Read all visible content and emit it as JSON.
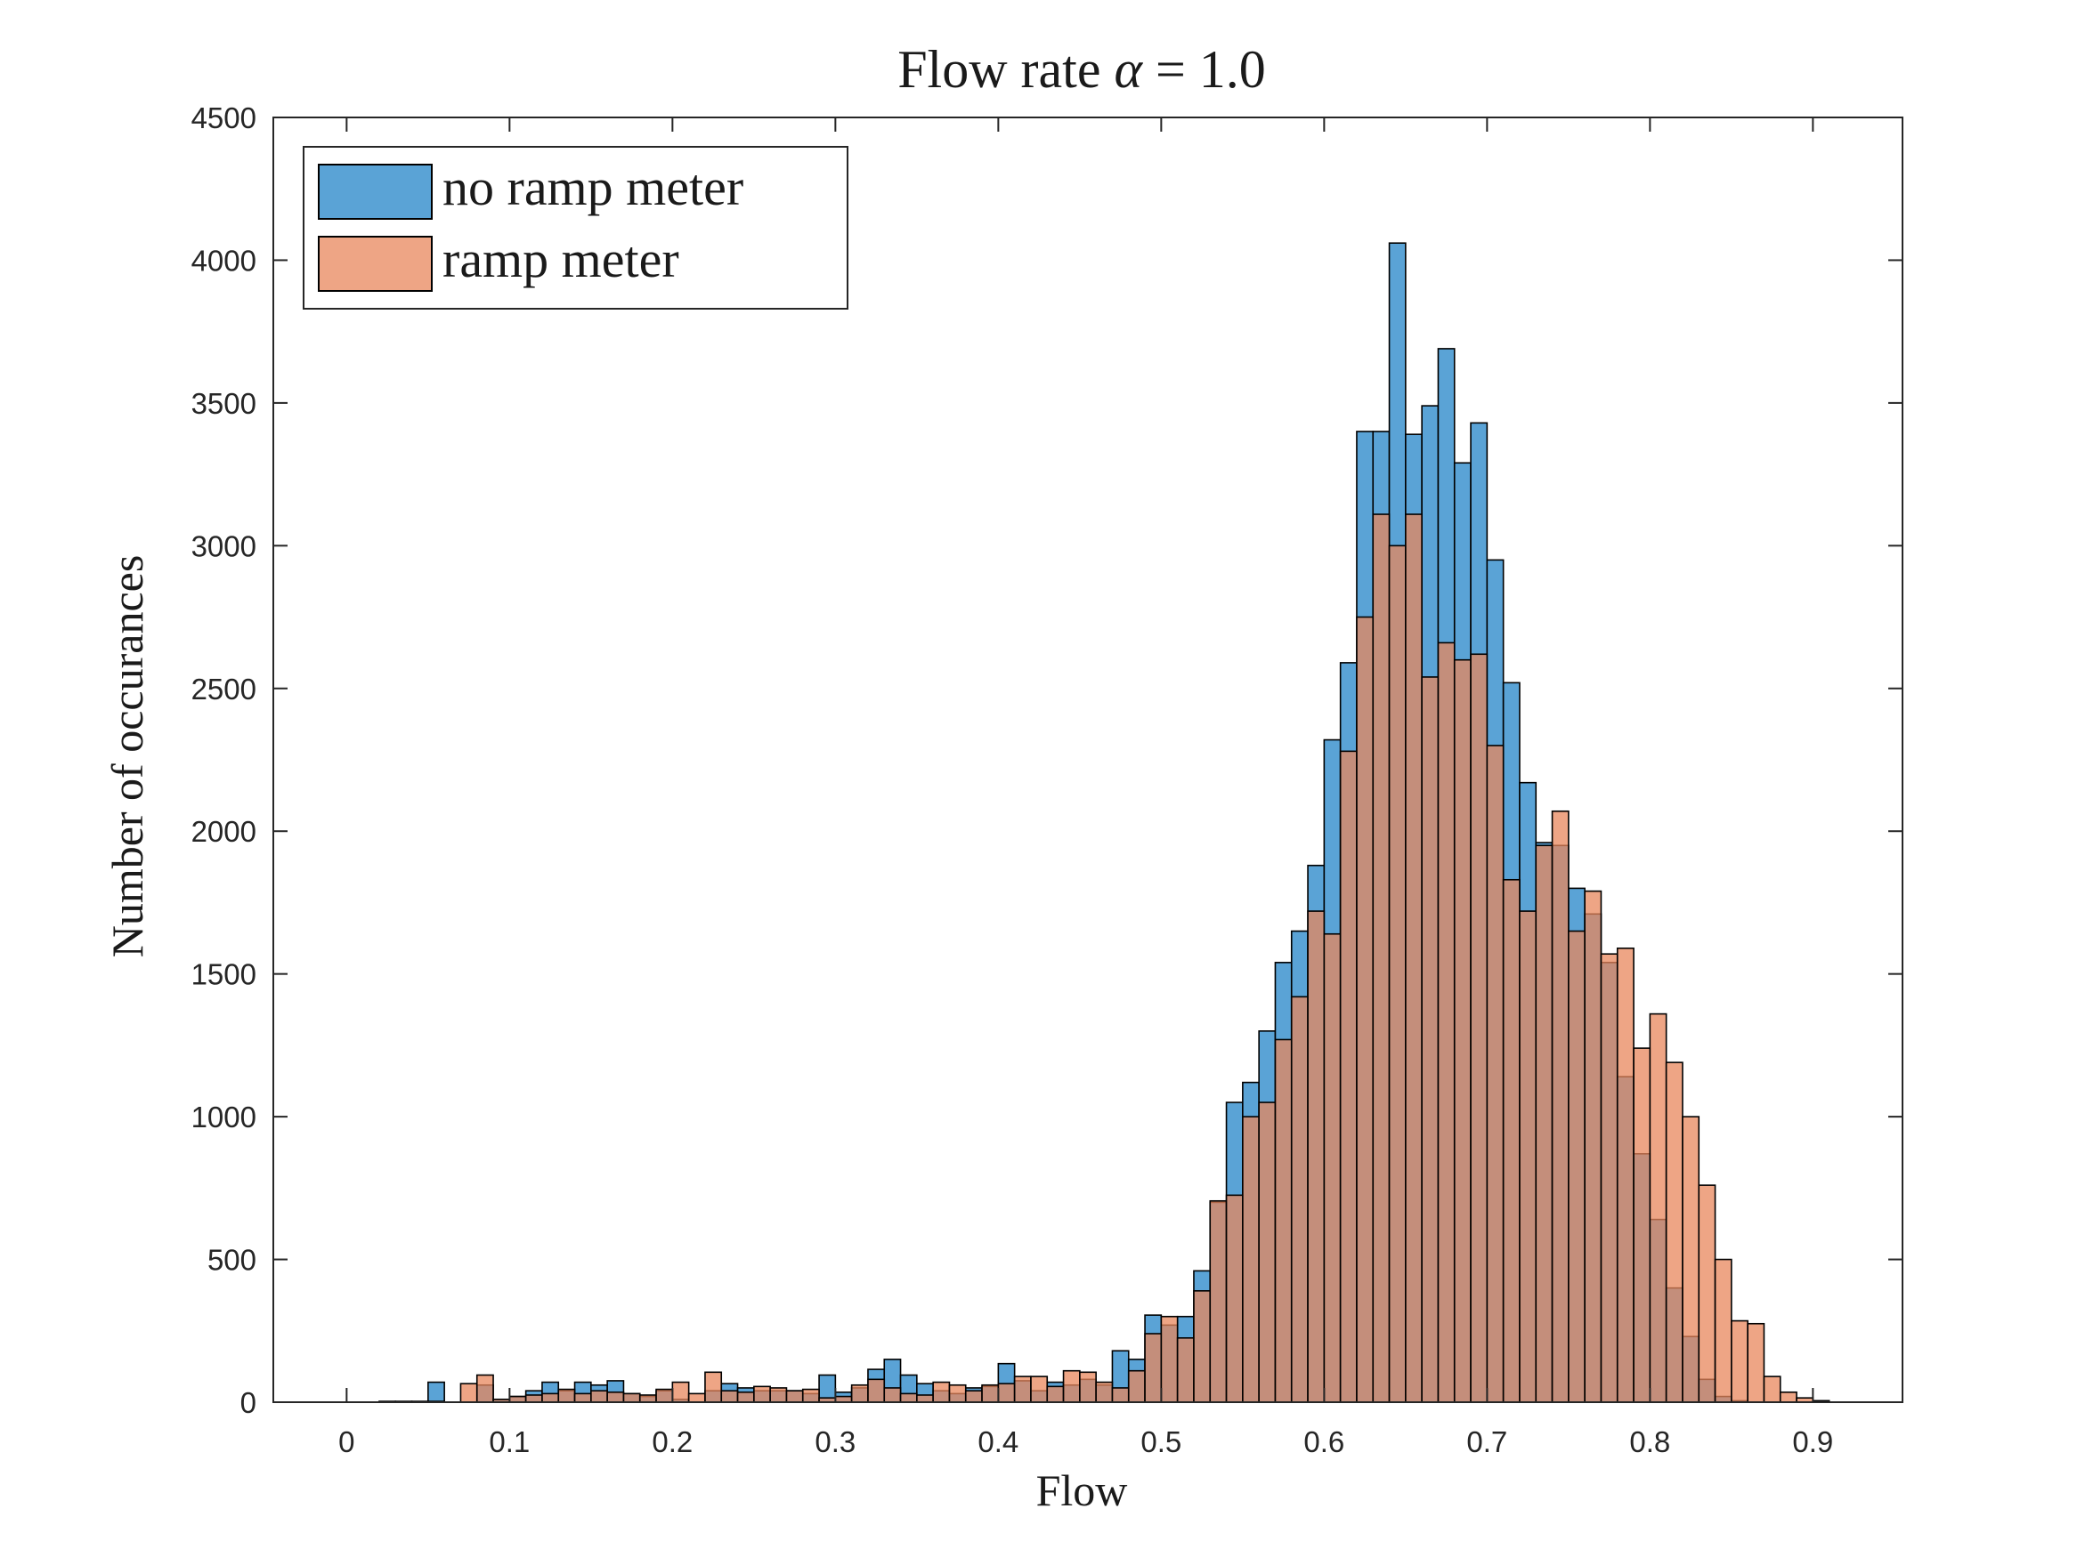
{
  "chart_data": {
    "type": "bar",
    "title": "Flow rate α = 1.0",
    "xlabel": "Flow",
    "ylabel": "Number of occurances",
    "xlim": [
      -0.045,
      0.955
    ],
    "ylim": [
      0,
      4500
    ],
    "bin_width": 0.01,
    "xticks": [
      0,
      0.1,
      0.2,
      0.3,
      0.4,
      0.5,
      0.6,
      0.7,
      0.8,
      0.9
    ],
    "xtick_labels": [
      "0",
      "0.1",
      "0.2",
      "0.3",
      "0.4",
      "0.5",
      "0.6",
      "0.7",
      "0.8",
      "0.9"
    ],
    "yticks": [
      0,
      500,
      1000,
      1500,
      2000,
      2500,
      3000,
      3500,
      4000,
      4500
    ],
    "ytick_labels": [
      "0",
      "500",
      "1000",
      "1500",
      "2000",
      "2500",
      "3000",
      "3500",
      "4000",
      "4500"
    ],
    "grid": false,
    "legend_position": "top-left",
    "series": [
      {
        "name": "no ramp meter",
        "color": "#5aa3d6",
        "bins": [
          [
            0.05,
            70
          ],
          [
            0.06,
            0
          ],
          [
            0.07,
            0
          ],
          [
            0.08,
            60
          ],
          [
            0.09,
            10
          ],
          [
            0.1,
            20
          ],
          [
            0.11,
            40
          ],
          [
            0.12,
            70
          ],
          [
            0.13,
            40
          ],
          [
            0.14,
            70
          ],
          [
            0.15,
            60
          ],
          [
            0.16,
            75
          ],
          [
            0.17,
            30
          ],
          [
            0.18,
            20
          ],
          [
            0.19,
            40
          ],
          [
            0.2,
            10
          ],
          [
            0.21,
            0
          ],
          [
            0.22,
            40
          ],
          [
            0.23,
            65
          ],
          [
            0.24,
            50
          ],
          [
            0.25,
            40
          ],
          [
            0.26,
            40
          ],
          [
            0.27,
            40
          ],
          [
            0.28,
            30
          ],
          [
            0.29,
            95
          ],
          [
            0.3,
            35
          ],
          [
            0.31,
            50
          ],
          [
            0.32,
            115
          ],
          [
            0.33,
            150
          ],
          [
            0.34,
            95
          ],
          [
            0.35,
            65
          ],
          [
            0.36,
            40
          ],
          [
            0.37,
            30
          ],
          [
            0.38,
            50
          ],
          [
            0.39,
            55
          ],
          [
            0.4,
            135
          ],
          [
            0.41,
            75
          ],
          [
            0.42,
            40
          ],
          [
            0.43,
            70
          ],
          [
            0.44,
            60
          ],
          [
            0.45,
            80
          ],
          [
            0.46,
            60
          ],
          [
            0.47,
            180
          ],
          [
            0.48,
            150
          ],
          [
            0.49,
            305
          ],
          [
            0.5,
            270
          ],
          [
            0.51,
            300
          ],
          [
            0.52,
            460
          ],
          [
            0.53,
            700
          ],
          [
            0.54,
            1050
          ],
          [
            0.55,
            1120
          ],
          [
            0.56,
            1300
          ],
          [
            0.57,
            1540
          ],
          [
            0.58,
            1650
          ],
          [
            0.59,
            1880
          ],
          [
            0.6,
            2320
          ],
          [
            0.61,
            2590
          ],
          [
            0.62,
            3400
          ],
          [
            0.63,
            3400
          ],
          [
            0.64,
            4060
          ],
          [
            0.65,
            3390
          ],
          [
            0.66,
            3490
          ],
          [
            0.67,
            3690
          ],
          [
            0.68,
            3290
          ],
          [
            0.69,
            3430
          ],
          [
            0.7,
            2950
          ],
          [
            0.71,
            2520
          ],
          [
            0.72,
            2170
          ],
          [
            0.73,
            1960
          ],
          [
            0.74,
            1950
          ],
          [
            0.75,
            1800
          ],
          [
            0.76,
            1710
          ],
          [
            0.77,
            1540
          ],
          [
            0.78,
            1140
          ],
          [
            0.79,
            870
          ],
          [
            0.8,
            640
          ],
          [
            0.81,
            400
          ],
          [
            0.82,
            230
          ],
          [
            0.83,
            80
          ],
          [
            0.84,
            20
          ],
          [
            0.85,
            5
          ],
          [
            0.86,
            0
          ],
          [
            0.87,
            0
          ],
          [
            0.88,
            0
          ],
          [
            0.89,
            0
          ],
          [
            0.9,
            5
          ]
        ]
      },
      {
        "name": "ramp meter",
        "color": "#e8875c",
        "bins": [
          [
            0.02,
            3
          ],
          [
            0.03,
            3
          ],
          [
            0.04,
            3
          ],
          [
            0.05,
            3
          ],
          [
            0.06,
            0
          ],
          [
            0.07,
            65
          ],
          [
            0.08,
            95
          ],
          [
            0.09,
            10
          ],
          [
            0.1,
            20
          ],
          [
            0.11,
            25
          ],
          [
            0.12,
            30
          ],
          [
            0.13,
            45
          ],
          [
            0.14,
            30
          ],
          [
            0.15,
            40
          ],
          [
            0.16,
            35
          ],
          [
            0.17,
            30
          ],
          [
            0.18,
            25
          ],
          [
            0.19,
            45
          ],
          [
            0.2,
            70
          ],
          [
            0.21,
            30
          ],
          [
            0.22,
            105
          ],
          [
            0.23,
            40
          ],
          [
            0.24,
            35
          ],
          [
            0.25,
            55
          ],
          [
            0.26,
            50
          ],
          [
            0.27,
            40
          ],
          [
            0.28,
            45
          ],
          [
            0.29,
            15
          ],
          [
            0.3,
            20
          ],
          [
            0.31,
            60
          ],
          [
            0.32,
            80
          ],
          [
            0.33,
            50
          ],
          [
            0.34,
            30
          ],
          [
            0.35,
            25
          ],
          [
            0.36,
            70
          ],
          [
            0.37,
            60
          ],
          [
            0.38,
            40
          ],
          [
            0.39,
            60
          ],
          [
            0.4,
            65
          ],
          [
            0.41,
            90
          ],
          [
            0.42,
            90
          ],
          [
            0.43,
            55
          ],
          [
            0.44,
            110
          ],
          [
            0.45,
            105
          ],
          [
            0.46,
            70
          ],
          [
            0.47,
            50
          ],
          [
            0.48,
            110
          ],
          [
            0.49,
            240
          ],
          [
            0.5,
            300
          ],
          [
            0.51,
            225
          ],
          [
            0.52,
            390
          ],
          [
            0.53,
            705
          ],
          [
            0.54,
            725
          ],
          [
            0.55,
            1000
          ],
          [
            0.56,
            1050
          ],
          [
            0.57,
            1270
          ],
          [
            0.58,
            1420
          ],
          [
            0.59,
            1720
          ],
          [
            0.6,
            1640
          ],
          [
            0.61,
            2280
          ],
          [
            0.62,
            2750
          ],
          [
            0.63,
            3110
          ],
          [
            0.64,
            3000
          ],
          [
            0.65,
            3110
          ],
          [
            0.66,
            2540
          ],
          [
            0.67,
            2660
          ],
          [
            0.68,
            2600
          ],
          [
            0.69,
            2620
          ],
          [
            0.7,
            2300
          ],
          [
            0.71,
            1830
          ],
          [
            0.72,
            1720
          ],
          [
            0.73,
            1950
          ],
          [
            0.74,
            2070
          ],
          [
            0.75,
            1650
          ],
          [
            0.76,
            1790
          ],
          [
            0.77,
            1570
          ],
          [
            0.78,
            1590
          ],
          [
            0.79,
            1240
          ],
          [
            0.8,
            1360
          ],
          [
            0.81,
            1190
          ],
          [
            0.82,
            1000
          ],
          [
            0.83,
            760
          ],
          [
            0.84,
            500
          ],
          [
            0.85,
            285
          ],
          [
            0.86,
            275
          ],
          [
            0.87,
            90
          ],
          [
            0.88,
            35
          ],
          [
            0.89,
            15
          ],
          [
            0.9,
            5
          ]
        ]
      }
    ]
  }
}
